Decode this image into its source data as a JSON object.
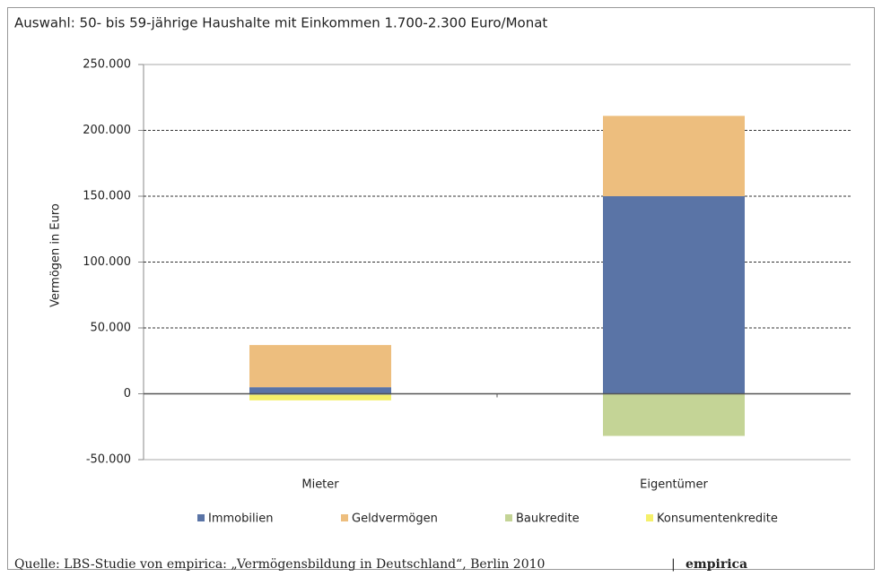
{
  "chart_data": {
    "type": "stacked_bar",
    "title": "Auswahl: 50- bis 59-jährige Haushalte mit Einkommen 1.700-2.300 Euro/Monat",
    "y_label": "Vermögen in Euro",
    "categories": [
      "Mieter",
      "Eigentümer"
    ],
    "series": [
      {
        "name": "Immobilien",
        "color": "#5a74a6",
        "values": [
          5000,
          150000
        ]
      },
      {
        "name": "Geldvermögen",
        "color": "#edbe7e",
        "values": [
          32000,
          61000
        ]
      },
      {
        "name": "Baukredite",
        "color": "#c4d496",
        "values": [
          -1000,
          -32000
        ]
      },
      {
        "name": "Konsumentenkredite",
        "color": "#f5f06a",
        "values": [
          -4000,
          0
        ]
      }
    ],
    "ylim": [
      -50000,
      250000
    ],
    "yticks": [
      {
        "value": -50000,
        "label": "-50.000"
      },
      0,
      {
        "value": 50000,
        "label": "50.000"
      },
      {
        "value": 100000,
        "label": "100.000"
      },
      {
        "value": 150000,
        "label": "150.000"
      },
      {
        "value": 200000,
        "label": "200.000"
      },
      {
        "value": 250000,
        "label": "250.000"
      }
    ],
    "grid": true,
    "legend": "bottom",
    "source": "Quelle: LBS-Studie von empirica: „Vermögensbildung in Deutschland“, Berlin 2010",
    "brand": "empirica"
  }
}
